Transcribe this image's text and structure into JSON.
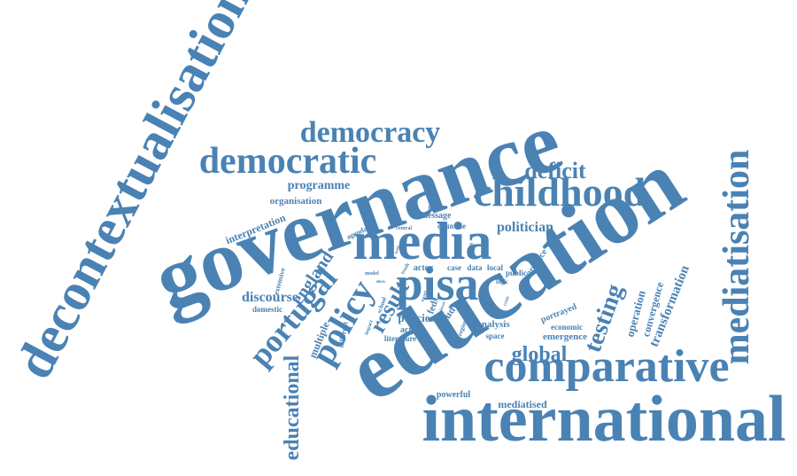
{
  "color": "#4a82b4",
  "words": {
    "education": "education",
    "governance": "governance",
    "international": "international",
    "decontextualisation": "decontextualisation",
    "comparative": "comparative",
    "media": "media",
    "pisa": "pisa",
    "childhood": "childhood",
    "democratic": "democratic",
    "democracy": "democracy",
    "mediatisation": "mediatisation",
    "portugal": "portugal",
    "policy": "policy",
    "educational": "educational",
    "testing": "testing",
    "global": "global",
    "result": "result",
    "deficit": "deficit",
    "england": "england",
    "politician": "politician",
    "discourse": "discourse",
    "transformation": "transformation",
    "operation": "operation",
    "convergence": "convergence",
    "programme": "programme",
    "organisation": "organisation",
    "interpretation": "interpretation",
    "policies": "policies",
    "analysis": "analysis",
    "mediatised": "mediatised",
    "multiple": "multiple",
    "emergence": "emergence",
    "portrayed": "portrayed",
    "economic": "economic",
    "message": "message",
    "countrie": "countrie",
    "agenda": "agenda",
    "central": "central",
    "paucity": "paucity",
    "actor": "actor",
    "case": "case",
    "data": "data",
    "local": "local",
    "public": "public",
    "practice": "practice",
    "logic": "logic",
    "study": "study",
    "action": "action",
    "literature": "literature",
    "space": "space",
    "powerful": "powerful",
    "domestic": "domestic",
    "extensive": "extensive",
    "model": "model",
    "truth": "truth",
    "school": "school",
    "impact": "impact",
    "different": "different",
    "regional": "regional",
    "feds": "feds",
    "crisis": "crisis",
    "show": "show",
    "tools": "tools",
    "tested": "tested",
    "focus": "focus",
    "reach": "reach",
    "position": "position"
  }
}
